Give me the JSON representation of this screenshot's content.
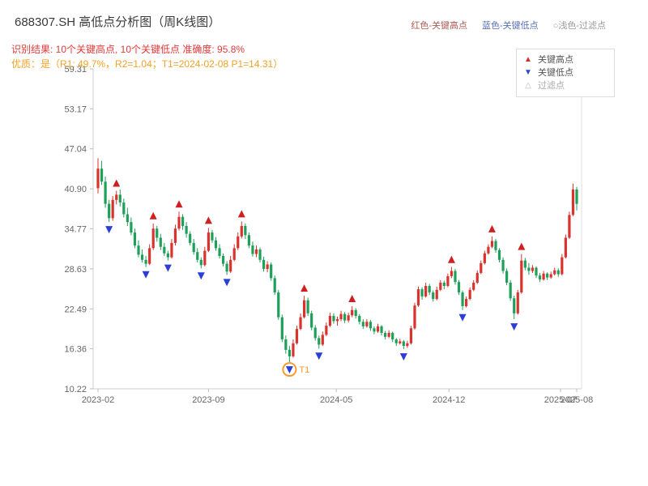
{
  "header": {
    "title": "688307.SH 高低点分析图（周K线图）",
    "top_legend": [
      {
        "label": "红色-关键高点",
        "color": "#b05a55"
      },
      {
        "label": "蓝色-关键低点",
        "color": "#5a6fb5"
      },
      {
        "label": "○浅色-过滤点",
        "color": "#9a9a9a"
      }
    ],
    "result_line": "识别结果: 10个关键高点, 10个关键低点  准确度: 95.8%",
    "result_color": "#e03a3a",
    "quality_line": "优质：是（R1: 49.7%，R2=1.04；T1=2024-02-08 P1=14.31）",
    "quality_color": "#f0a224"
  },
  "legend_box": {
    "items": [
      {
        "glyph": "▲",
        "label": "关键高点",
        "color": "#cf2f2f"
      },
      {
        "glyph": "▼",
        "label": "关键低点",
        "color": "#2b48d0"
      },
      {
        "glyph": "△",
        "label": "过滤点",
        "color": "#bbbbbb"
      }
    ]
  },
  "chart_data": {
    "type": "candlestick",
    "title": "688307.SH 高低点分析图（周K线图）",
    "ylim": [
      10.22,
      59.31
    ],
    "yticks": {
      "values": [
        59.31,
        53.17,
        47.04,
        40.9,
        34.77,
        28.63,
        22.49,
        16.36,
        10.22
      ],
      "labels": [
        "59.31",
        "53.17",
        "47.04",
        "40.90",
        "34.77",
        "28.63",
        "22.49",
        "16.36",
        "10.22"
      ]
    },
    "xticks": [
      {
        "pos": 0,
        "label": "2023-02"
      },
      {
        "pos": 30,
        "label": "2023-09"
      },
      {
        "pos": 64.7,
        "label": "2024-05"
      },
      {
        "pos": 95.3,
        "label": "2024-12"
      },
      {
        "pos": 125.6,
        "label": "2025-07"
      },
      {
        "pos": 130,
        "label": "2025-08"
      }
    ],
    "up_color": "#d9332e",
    "down_color": "#1fa05a",
    "marker_high_color": "#cf1f1f",
    "marker_low_color": "#2b3fd6",
    "candles": [
      [
        41.0,
        45.6,
        40.2,
        44.0
      ],
      [
        44.0,
        45.2,
        41.5,
        42.0
      ],
      [
        42.0,
        42.8,
        38.0,
        38.6
      ],
      [
        38.6,
        39.2,
        35.8,
        36.4
      ],
      [
        36.4,
        39.8,
        36.0,
        39.2
      ],
      [
        39.2,
        40.6,
        38.5,
        40.0
      ],
      [
        40.0,
        40.8,
        38.2,
        38.8
      ],
      [
        38.8,
        39.4,
        36.5,
        37.0
      ],
      [
        37.0,
        38.0,
        35.2,
        35.8
      ],
      [
        35.8,
        36.5,
        33.8,
        34.2
      ],
      [
        34.2,
        34.8,
        31.8,
        32.2
      ],
      [
        32.2,
        33.0,
        30.4,
        30.8
      ],
      [
        30.8,
        31.6,
        29.6,
        30.0
      ],
      [
        30.0,
        30.6,
        28.9,
        29.4
      ],
      [
        29.4,
        32.4,
        29.2,
        31.8
      ],
      [
        31.8,
        35.6,
        31.5,
        34.8
      ],
      [
        34.8,
        35.2,
        32.8,
        33.4
      ],
      [
        33.4,
        34.0,
        31.5,
        32.0
      ],
      [
        32.0,
        32.6,
        30.6,
        31.0
      ],
      [
        31.0,
        31.4,
        29.9,
        30.4
      ],
      [
        30.4,
        33.2,
        30.2,
        32.6
      ],
      [
        32.6,
        35.4,
        32.2,
        34.8
      ],
      [
        34.8,
        37.4,
        34.5,
        36.6
      ],
      [
        36.6,
        37.0,
        34.6,
        35.2
      ],
      [
        35.2,
        35.8,
        33.4,
        34.0
      ],
      [
        34.0,
        34.4,
        32.2,
        32.6
      ],
      [
        32.6,
        33.2,
        30.8,
        31.2
      ],
      [
        31.2,
        31.8,
        29.6,
        30.0
      ],
      [
        30.0,
        30.4,
        28.7,
        29.2
      ],
      [
        29.2,
        32.0,
        29.0,
        31.4
      ],
      [
        31.4,
        34.9,
        31.2,
        34.2
      ],
      [
        34.2,
        34.6,
        32.6,
        33.0
      ],
      [
        33.0,
        33.5,
        31.4,
        31.8
      ],
      [
        31.8,
        32.4,
        30.2,
        30.6
      ],
      [
        30.6,
        31.0,
        29.0,
        29.4
      ],
      [
        29.4,
        29.8,
        27.7,
        28.2
      ],
      [
        28.2,
        30.6,
        28.0,
        30.0
      ],
      [
        30.0,
        32.4,
        29.8,
        31.8
      ],
      [
        31.8,
        34.2,
        31.5,
        33.6
      ],
      [
        33.6,
        35.9,
        33.3,
        35.2
      ],
      [
        35.2,
        35.6,
        33.2,
        33.8
      ],
      [
        33.8,
        34.2,
        31.8,
        32.2
      ],
      [
        32.2,
        32.8,
        30.5,
        30.9
      ],
      [
        30.9,
        32.2,
        30.4,
        31.6
      ],
      [
        31.6,
        31.9,
        29.6,
        30.0
      ],
      [
        30.0,
        30.5,
        28.2,
        28.6
      ],
      [
        28.6,
        29.8,
        28.1,
        29.3
      ],
      [
        29.3,
        29.6,
        26.8,
        27.2
      ],
      [
        27.2,
        27.6,
        24.6,
        25.0
      ],
      [
        25.0,
        25.4,
        20.8,
        21.2
      ],
      [
        21.2,
        21.6,
        17.4,
        17.8
      ],
      [
        17.8,
        18.4,
        15.6,
        16.2
      ],
      [
        16.2,
        16.8,
        14.31,
        15.2
      ],
      [
        15.2,
        17.8,
        15.0,
        17.2
      ],
      [
        17.2,
        19.9,
        17.0,
        19.4
      ],
      [
        19.4,
        21.8,
        19.2,
        21.2
      ],
      [
        21.2,
        24.5,
        21.0,
        23.8
      ],
      [
        23.8,
        24.2,
        21.4,
        21.8
      ],
      [
        21.8,
        22.2,
        19.2,
        19.6
      ],
      [
        19.6,
        20.0,
        17.6,
        18.0
      ],
      [
        18.0,
        18.4,
        16.4,
        17.0
      ],
      [
        17.0,
        19.0,
        16.8,
        18.5
      ],
      [
        18.5,
        20.4,
        18.3,
        19.9
      ],
      [
        19.9,
        21.9,
        19.7,
        21.4
      ],
      [
        21.4,
        21.8,
        20.2,
        20.6
      ],
      [
        20.6,
        21.3,
        19.9,
        20.9
      ],
      [
        20.9,
        22.2,
        20.6,
        21.7
      ],
      [
        21.7,
        22.0,
        20.3,
        20.7
      ],
      [
        20.7,
        21.9,
        20.4,
        21.5
      ],
      [
        21.5,
        22.9,
        21.2,
        22.3
      ],
      [
        22.3,
        22.6,
        21.0,
        21.4
      ],
      [
        21.4,
        21.7,
        20.1,
        20.5
      ],
      [
        20.5,
        20.9,
        19.4,
        19.8
      ],
      [
        19.8,
        20.9,
        19.6,
        20.5
      ],
      [
        20.5,
        20.8,
        19.1,
        19.5
      ],
      [
        19.5,
        19.8,
        18.6,
        19.0
      ],
      [
        19.0,
        20.2,
        18.8,
        19.8
      ],
      [
        19.8,
        20.0,
        18.4,
        18.8
      ],
      [
        18.8,
        19.1,
        17.8,
        18.2
      ],
      [
        18.2,
        19.2,
        18.0,
        18.8
      ],
      [
        18.8,
        19.0,
        17.4,
        17.8
      ],
      [
        17.8,
        18.0,
        16.8,
        17.2
      ],
      [
        17.2,
        17.9,
        17.0,
        17.5
      ],
      [
        17.5,
        17.7,
        16.3,
        16.8
      ],
      [
        16.8,
        17.6,
        16.5,
        17.2
      ],
      [
        17.2,
        19.9,
        17.0,
        19.5
      ],
      [
        19.5,
        23.4,
        19.3,
        23.0
      ],
      [
        23.0,
        25.9,
        22.8,
        25.5
      ],
      [
        25.5,
        25.8,
        23.9,
        24.4
      ],
      [
        24.4,
        26.5,
        24.2,
        26.0
      ],
      [
        26.0,
        26.3,
        24.6,
        25.0
      ],
      [
        25.0,
        25.3,
        23.6,
        24.0
      ],
      [
        24.0,
        25.9,
        23.8,
        25.4
      ],
      [
        25.4,
        26.9,
        25.2,
        26.5
      ],
      [
        26.5,
        26.8,
        25.5,
        26.0
      ],
      [
        26.0,
        27.9,
        25.8,
        27.5
      ],
      [
        27.5,
        28.9,
        27.2,
        28.3
      ],
      [
        28.3,
        28.6,
        26.2,
        26.6
      ],
      [
        26.6,
        26.9,
        24.6,
        25.0
      ],
      [
        25.0,
        25.3,
        22.3,
        22.9
      ],
      [
        22.9,
        24.4,
        22.7,
        24.0
      ],
      [
        24.0,
        25.8,
        23.8,
        25.4
      ],
      [
        25.4,
        26.9,
        25.2,
        26.5
      ],
      [
        26.5,
        28.4,
        26.3,
        28.0
      ],
      [
        28.0,
        29.9,
        27.8,
        29.5
      ],
      [
        29.5,
        31.4,
        29.3,
        31.0
      ],
      [
        31.0,
        32.4,
        30.8,
        32.0
      ],
      [
        32.0,
        33.6,
        31.8,
        32.9
      ],
      [
        32.9,
        33.2,
        31.1,
        31.5
      ],
      [
        31.5,
        31.8,
        29.6,
        30.0
      ],
      [
        30.0,
        30.4,
        27.9,
        28.3
      ],
      [
        28.3,
        28.7,
        26.1,
        26.5
      ],
      [
        26.5,
        26.9,
        23.7,
        24.1
      ],
      [
        24.1,
        24.5,
        20.9,
        21.8
      ],
      [
        21.8,
        25.4,
        21.6,
        25.0
      ],
      [
        25.0,
        30.9,
        24.8,
        29.9
      ],
      [
        29.9,
        30.3,
        28.4,
        28.8
      ],
      [
        28.8,
        29.5,
        27.7,
        28.3
      ],
      [
        28.3,
        29.2,
        28.0,
        28.8
      ],
      [
        28.8,
        29.0,
        27.2,
        27.6
      ],
      [
        27.6,
        28.0,
        26.6,
        27.0
      ],
      [
        27.0,
        28.3,
        26.8,
        27.9
      ],
      [
        27.9,
        28.1,
        26.9,
        27.3
      ],
      [
        27.3,
        28.2,
        27.1,
        27.8
      ],
      [
        27.8,
        28.8,
        27.6,
        28.4
      ],
      [
        28.4,
        28.7,
        27.4,
        27.8
      ],
      [
        27.8,
        30.9,
        27.6,
        30.4
      ],
      [
        30.4,
        33.9,
        30.2,
        33.4
      ],
      [
        33.4,
        37.4,
        33.2,
        36.9
      ],
      [
        36.9,
        41.7,
        36.7,
        40.8
      ],
      [
        40.8,
        41.2,
        37.6,
        38.6
      ]
    ],
    "key_highs": [
      5,
      15,
      22,
      30,
      39,
      56,
      69,
      96,
      107,
      115
    ],
    "key_lows": [
      3,
      13,
      19,
      28,
      35,
      52,
      60,
      83,
      99,
      113
    ],
    "t1": {
      "index": 52,
      "label": "T1",
      "price": 14.31,
      "color": "#f79b2e"
    }
  }
}
